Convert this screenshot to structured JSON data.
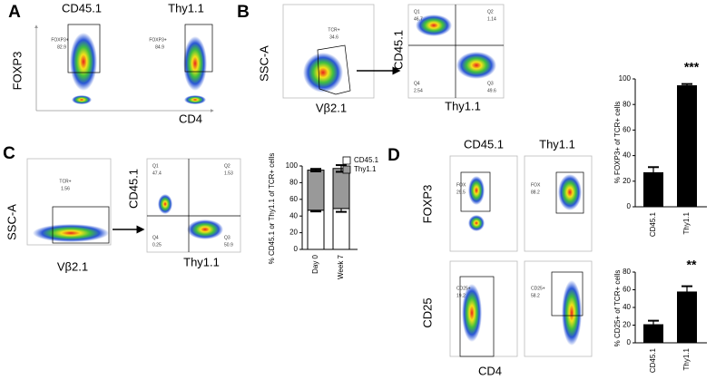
{
  "panel_a": {
    "label": "A",
    "columns": [
      "CD45.1",
      "Thy1.1"
    ],
    "gates": [
      {
        "name": "FOXP3+",
        "value": 82.9
      },
      {
        "name": "FOXP3+",
        "value": 84.9
      }
    ],
    "y_axis": "FOXP3",
    "x_axis": "CD4"
  },
  "panel_b": {
    "label": "B",
    "gate": {
      "name": "TCR+",
      "value": 34.6
    },
    "y_axis": "SSC-A",
    "x_axis": "Vβ2.1",
    "quadrant_y_axis": "CD45.1",
    "quadrant_x_axis": "Thy1.1",
    "quadrants": [
      {
        "name": "Q1",
        "value": 46.7
      },
      {
        "name": "Q2",
        "value": 1.14
      },
      {
        "name": "Q4",
        "value": 2.54
      },
      {
        "name": "Q3",
        "value": 49.6
      }
    ]
  },
  "panel_c": {
    "label": "C",
    "gate": {
      "name": "TCR+",
      "value": 1.56
    },
    "y_axis": "SSC-A",
    "x_axis": "Vβ2.1",
    "quadrant_y_axis": "CD45.1",
    "quadrant_x_axis": "Thy1.1",
    "quadrants": [
      {
        "name": "Q1",
        "value": 47.4
      },
      {
        "name": "Q2",
        "value": 1.53
      },
      {
        "name": "Q4",
        "value": 0.25
      },
      {
        "name": "Q3",
        "value": 50.9
      }
    ]
  },
  "panel_d": {
    "label": "D",
    "columns": [
      "CD45.1",
      "Thy1.1"
    ],
    "foxp3_gates": [
      {
        "name": "FOX",
        "value": 29.5
      },
      {
        "name": "FOX",
        "value": 88.2
      }
    ],
    "cd25_gates": [
      {
        "name": "CD25+",
        "value": 19.2
      },
      {
        "name": "CD25+",
        "value": 58.2
      }
    ],
    "y_axes": [
      "FOXP3",
      "CD25"
    ],
    "x_axis": "CD4"
  },
  "chart_data": [
    {
      "type": "bar",
      "stacked": true,
      "y_label": "% CD45.1 or Thy1.1 of TCR+ cells",
      "categories": [
        "Day 0",
        "Week 7"
      ],
      "series": [
        {
          "name": "CD45.1",
          "color": "#ffffff",
          "values": [
            47,
            49
          ],
          "errors": [
            1.5,
            4
          ]
        },
        {
          "name": "Thy1.1",
          "color": "#999999",
          "values": [
            48,
            48
          ],
          "errors": [
            1.5,
            4
          ]
        }
      ],
      "ylim": [
        0,
        100
      ],
      "yticks": [
        0,
        20,
        40,
        60,
        80,
        100
      ]
    },
    {
      "type": "bar",
      "y_label": "% FOXP3+ of TCR+ cells",
      "annotation": "***",
      "categories": [
        "CD45.1",
        "Thy1.1"
      ],
      "values": [
        27,
        95
      ],
      "errors": [
        4,
        1
      ],
      "color": "#000000",
      "ylim": [
        0,
        100
      ],
      "yticks": [
        0,
        20,
        40,
        60,
        80,
        100
      ]
    },
    {
      "type": "bar",
      "y_label": "% CD25+ of TCR+ cells",
      "annotation": "**",
      "categories": [
        "CD45.1",
        "Thy1.1"
      ],
      "values": [
        21,
        58
      ],
      "errors": [
        4,
        6
      ],
      "color": "#000000",
      "ylim": [
        0,
        80
      ],
      "yticks": [
        0,
        20,
        40,
        60,
        80
      ]
    }
  ]
}
